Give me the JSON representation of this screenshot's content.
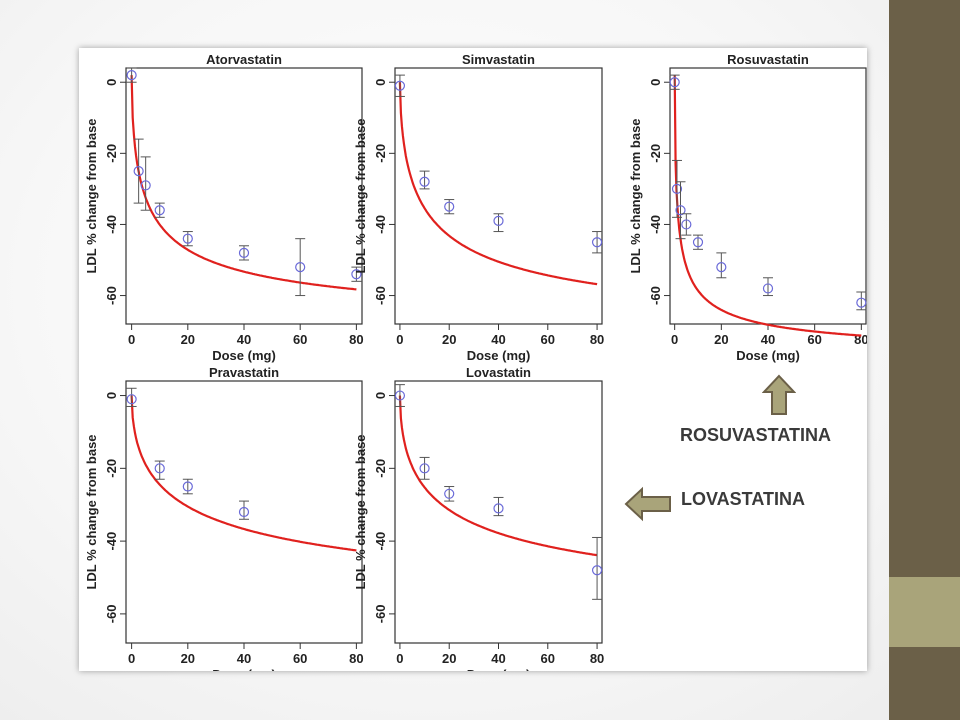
{
  "slide": {
    "callouts": [
      {
        "id": "rosu",
        "label": "ROSUVASTATINA",
        "arrow": "up"
      },
      {
        "id": "lova",
        "label": "LOVASTATINA",
        "arrow": "left"
      }
    ],
    "colors": {
      "sidebar": "#6b6048",
      "sidebar_accent": "#a9a47a",
      "arrow_fill": "#a9a47a",
      "arrow_stroke": "#6b6048"
    }
  },
  "chart_data": [
    {
      "type": "scatter",
      "title": "Atorvastatin",
      "xlabel": "Dose (mg)",
      "ylabel": "LDL % change from base",
      "xlim": [
        -2,
        82
      ],
      "ylim": [
        -68,
        4
      ],
      "xticks": [
        0,
        20,
        40,
        60,
        80
      ],
      "yticks": [
        0,
        -20,
        -40,
        -60
      ],
      "curve": {
        "color": "#e0211e",
        "fit": "emax",
        "e0": 2,
        "emax": -73,
        "ed50": 6,
        "h": 0.6
      },
      "points": [
        {
          "x": 0,
          "y": 2,
          "lo": 0,
          "hi": 4
        },
        {
          "x": 2.5,
          "y": -25,
          "lo": -34,
          "hi": -16
        },
        {
          "x": 5,
          "y": -29,
          "lo": -36,
          "hi": -21
        },
        {
          "x": 10,
          "y": -36,
          "lo": -38,
          "hi": -34
        },
        {
          "x": 20,
          "y": -44,
          "lo": -46,
          "hi": -42
        },
        {
          "x": 40,
          "y": -48,
          "lo": -50,
          "hi": -46
        },
        {
          "x": 60,
          "y": -52,
          "lo": -60,
          "hi": -44
        },
        {
          "x": 80,
          "y": -54,
          "lo": -56,
          "hi": -52
        }
      ]
    },
    {
      "type": "scatter",
      "title": "Simvastatin",
      "xlabel": "Dose (mg)",
      "ylabel": "LDL % change from base",
      "xlim": [
        -2,
        82
      ],
      "ylim": [
        -68,
        4
      ],
      "xticks": [
        0,
        20,
        40,
        60,
        80
      ],
      "yticks": [
        0,
        -20,
        -40,
        -60
      ],
      "curve": {
        "color": "#e0211e",
        "fit": "emax",
        "e0": 0,
        "emax": -75,
        "ed50": 12,
        "h": 0.6
      },
      "points": [
        {
          "x": 0,
          "y": -1,
          "lo": -4,
          "hi": 2
        },
        {
          "x": 10,
          "y": -28,
          "lo": -30,
          "hi": -25
        },
        {
          "x": 20,
          "y": -35,
          "lo": -37,
          "hi": -33
        },
        {
          "x": 40,
          "y": -39,
          "lo": -42,
          "hi": -37
        },
        {
          "x": 80,
          "y": -45,
          "lo": -48,
          "hi": -42
        }
      ]
    },
    {
      "type": "scatter",
      "title": "Rosuvastatin",
      "xlabel": "Dose (mg)",
      "ylabel": "LDL % change from base",
      "xlim": [
        -2,
        82
      ],
      "ylim": [
        -68,
        4
      ],
      "xticks": [
        0,
        20,
        40,
        60,
        80
      ],
      "yticks": [
        0,
        -20,
        -40,
        -60
      ],
      "curve": {
        "color": "#e0211e",
        "fit": "emax",
        "e0": 2,
        "emax": -80,
        "ed50": 1.5,
        "h": 0.6
      },
      "points": [
        {
          "x": 0,
          "y": 0,
          "lo": -2,
          "hi": 2
        },
        {
          "x": 1,
          "y": -30,
          "lo": -38,
          "hi": -22
        },
        {
          "x": 2.5,
          "y": -36,
          "lo": -44,
          "hi": -28
        },
        {
          "x": 5,
          "y": -40,
          "lo": -43,
          "hi": -37
        },
        {
          "x": 10,
          "y": -45,
          "lo": -47,
          "hi": -43
        },
        {
          "x": 20,
          "y": -52,
          "lo": -55,
          "hi": -48
        },
        {
          "x": 40,
          "y": -58,
          "lo": -60,
          "hi": -55
        },
        {
          "x": 80,
          "y": -62,
          "lo": -64,
          "hi": -59
        }
      ]
    },
    {
      "type": "scatter",
      "title": "Pravastatin",
      "xlabel": "Dose (mg)",
      "ylabel": "LDL % change from base",
      "xlim": [
        -2,
        82
      ],
      "ylim": [
        -68,
        4
      ],
      "xticks": [
        0,
        20,
        40,
        60,
        80
      ],
      "yticks": [
        0,
        -20,
        -40,
        -60
      ],
      "curve": {
        "color": "#e0211e",
        "fit": "emax",
        "e0": 0,
        "emax": -65,
        "ed50": 25,
        "h": 0.55
      },
      "points": [
        {
          "x": 0,
          "y": -1,
          "lo": -3,
          "hi": 2
        },
        {
          "x": 10,
          "y": -20,
          "lo": -23,
          "hi": -18
        },
        {
          "x": 20,
          "y": -25,
          "lo": -27,
          "hi": -23
        },
        {
          "x": 40,
          "y": -32,
          "lo": -34,
          "hi": -29
        }
      ]
    },
    {
      "type": "scatter",
      "title": "Lovastatin",
      "xlabel": "Dose (mg)",
      "ylabel": "LDL % change from base",
      "xlim": [
        -2,
        82
      ],
      "ylim": [
        -68,
        4
      ],
      "xticks": [
        0,
        20,
        40,
        60,
        80
      ],
      "yticks": [
        0,
        -20,
        -40,
        -60
      ],
      "curve": {
        "color": "#e0211e",
        "fit": "emax",
        "e0": 0,
        "emax": -67,
        "ed50": 25,
        "h": 0.55
      },
      "points": [
        {
          "x": 0,
          "y": 0,
          "lo": -3,
          "hi": 3
        },
        {
          "x": 10,
          "y": -20,
          "lo": -23,
          "hi": -17
        },
        {
          "x": 20,
          "y": -27,
          "lo": -29,
          "hi": -25
        },
        {
          "x": 40,
          "y": -31,
          "lo": -33,
          "hi": -28
        },
        {
          "x": 80,
          "y": -48,
          "lo": -56,
          "hi": -39
        }
      ]
    }
  ]
}
